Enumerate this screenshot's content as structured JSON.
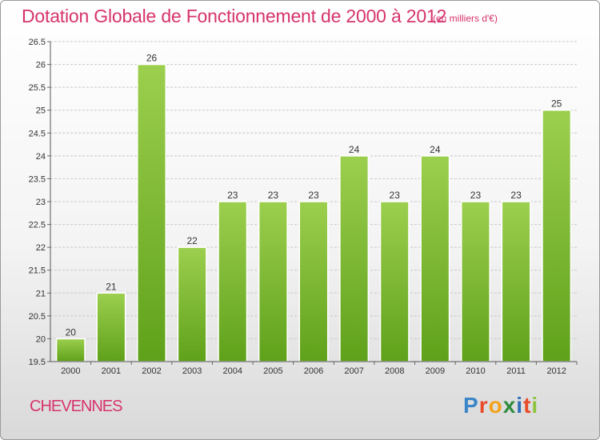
{
  "header": {
    "title": "Dotation Globale de Fonctionnement de 2000 à 2012",
    "unit": "(en milliers d'€)"
  },
  "footer": {
    "place": "CHEVENNES",
    "logo_letters": [
      "P",
      "r",
      "o",
      "x",
      "i",
      "t",
      "i"
    ],
    "logo_colors": [
      "#3a86c8",
      "#e84b2a",
      "#f3a21b",
      "#2e8b3c",
      "#2e6fb7",
      "#e84b2a",
      "#8cc43f"
    ]
  },
  "chart_data": {
    "type": "bar",
    "title": "Dotation Globale de Fonctionnement de 2000 à 2012",
    "xlabel": "",
    "ylabel": "",
    "categories": [
      "2000",
      "2001",
      "2002",
      "2003",
      "2004",
      "2005",
      "2006",
      "2007",
      "2008",
      "2009",
      "2010",
      "2011",
      "2012"
    ],
    "values": [
      20,
      21,
      26,
      22,
      23,
      23,
      23,
      24,
      23,
      24,
      23,
      23,
      25
    ],
    "labels": [
      "20",
      "21",
      "26",
      "22",
      "23",
      "23",
      "23",
      "24",
      "23",
      "24",
      "23",
      "23",
      "25"
    ],
    "ylim": [
      19.5,
      26.5
    ],
    "yticks": [
      19.5,
      20,
      20.5,
      21,
      21.5,
      22,
      22.5,
      23,
      23.5,
      24,
      24.5,
      25,
      25.5,
      26,
      26.5
    ],
    "ytick_labels": [
      "19.5",
      "20",
      "20.5",
      "21",
      "21.5",
      "22",
      "22.5",
      "23",
      "23.5",
      "24",
      "24.5",
      "25",
      "25.5",
      "26",
      "26.5"
    ],
    "grid": true,
    "bar_color_top": "#9ccf4e",
    "bar_color_bottom": "#5fa11a"
  }
}
